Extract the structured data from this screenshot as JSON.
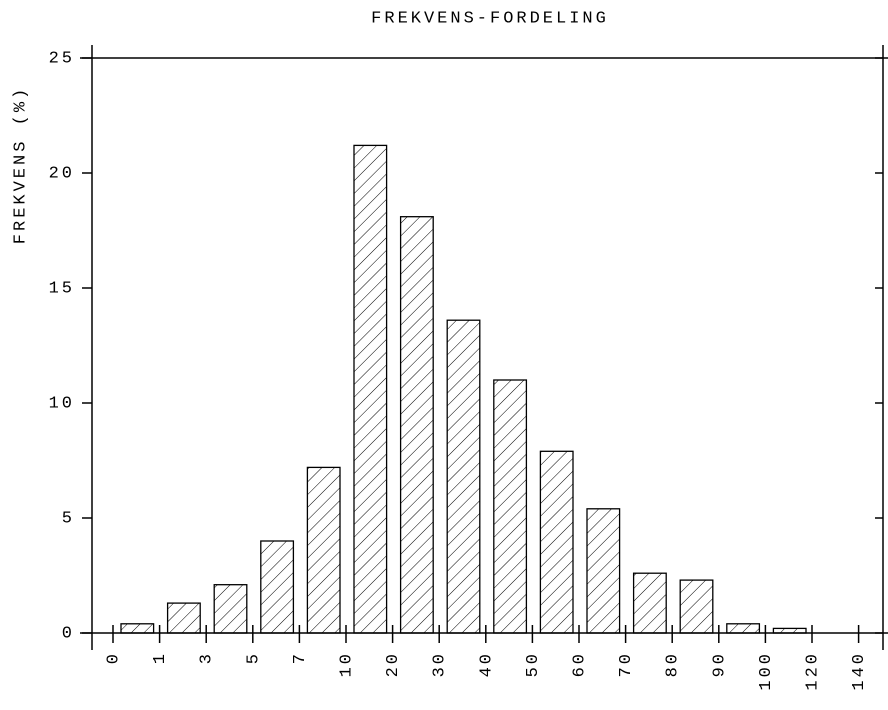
{
  "chart_data": {
    "type": "histogram",
    "title": "FREKVENS-FORDELING",
    "y_label": "FREKVENS (%)",
    "bins": [
      0,
      1,
      3,
      5,
      7,
      10,
      20,
      30,
      40,
      50,
      60,
      70,
      80,
      90,
      100,
      120,
      140
    ],
    "values": [
      0.4,
      1.3,
      2.1,
      4.0,
      7.2,
      21.2,
      18.1,
      13.6,
      11.0,
      7.9,
      5.4,
      2.6,
      2.3,
      0.4,
      0.2,
      0.0
    ],
    "color": "#000000",
    "ylim": [
      0,
      25
    ],
    "yticks": [
      0,
      5,
      10,
      15,
      20,
      25
    ]
  }
}
